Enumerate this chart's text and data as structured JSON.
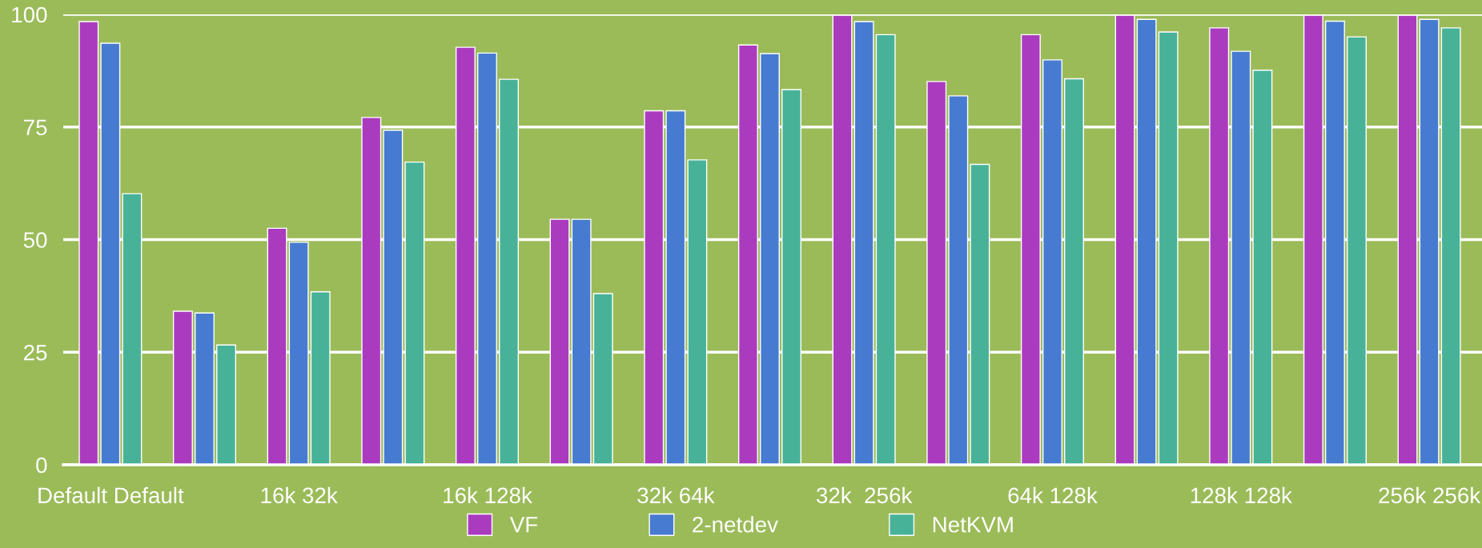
{
  "chart_data": {
    "type": "bar",
    "categories": [
      "Default Default",
      null,
      "16k 32k",
      null,
      "16k 128k",
      null,
      "32k 64k",
      null,
      "32k  256k",
      null,
      "64k 128k",
      null,
      "128k 128k",
      null,
      "256k 256k"
    ],
    "series": [
      {
        "name": "VF",
        "color": "#aa3bbf",
        "values": [
          98.4,
          34.1,
          52.5,
          77.1,
          92.7,
          54.5,
          78.6,
          93.2,
          99.8,
          85.1,
          95.5,
          99.8,
          97.0,
          99.8,
          99.8
        ]
      },
      {
        "name": "2-netdev",
        "color": "#467bd1",
        "values": [
          93.6,
          33.7,
          49.4,
          74.3,
          91.4,
          54.5,
          78.6,
          91.3,
          98.4,
          81.9,
          89.9,
          98.9,
          91.8,
          98.5,
          98.9
        ]
      },
      {
        "name": "NetKVM",
        "color": "#47b297",
        "values": [
          60.2,
          26.6,
          38.4,
          67.2,
          85.6,
          38.0,
          67.7,
          83.3,
          95.5,
          66.7,
          85.7,
          96.1,
          87.6,
          95.0,
          97.0
        ]
      }
    ],
    "ylim": [
      0,
      100
    ],
    "yticks": [
      0,
      25,
      50,
      75,
      100
    ],
    "grid": "y",
    "legend": "bottom"
  }
}
